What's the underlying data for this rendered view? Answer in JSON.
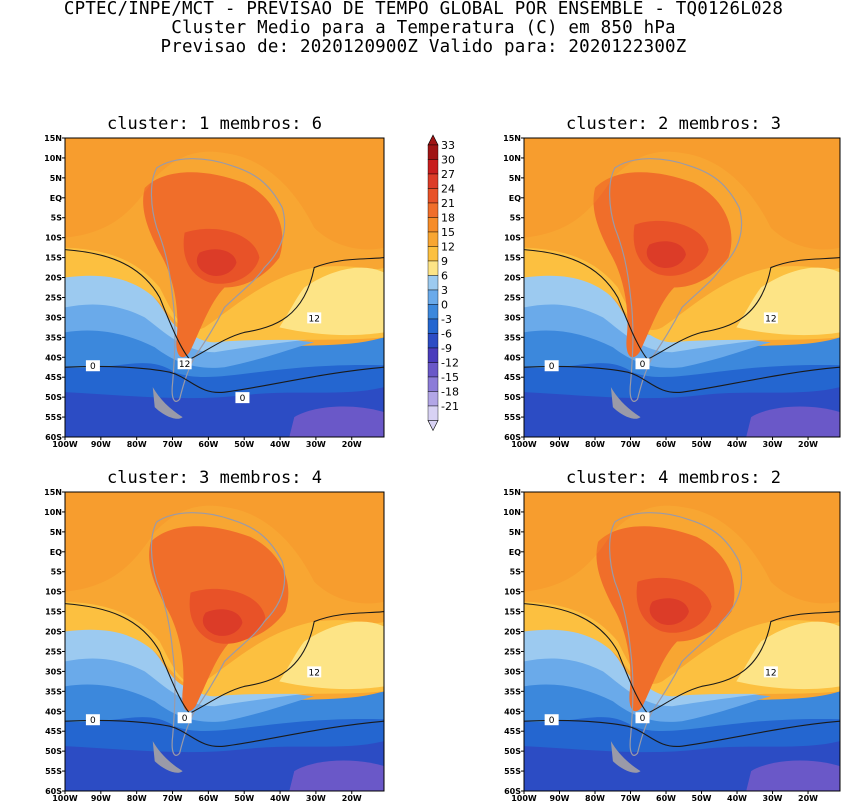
{
  "header": {
    "line1": "CPTEC/INPE/MCT - PREVISAO DE TEMPO GLOBAL POR ENSEMBLE - TQ0126L028",
    "line2": "Cluster Medio para a Temperatura (C) em 850 hPa",
    "line3": "Previsao de: 2020120900Z   Valido para: 2020122300Z"
  },
  "panels": [
    {
      "title": "cluster: 1   membros: 6",
      "contour_labels": [
        "12",
        "12",
        "0",
        "0"
      ]
    },
    {
      "title": "cluster: 2   membros: 3",
      "contour_labels": [
        "12",
        "0",
        "0"
      ]
    },
    {
      "title": "cluster: 3   membros: 4",
      "contour_labels": [
        "12",
        "0",
        "0"
      ]
    },
    {
      "title": "cluster: 4   membros: 2",
      "contour_labels": [
        "12",
        "0",
        "0"
      ]
    }
  ],
  "lat_labels": [
    "15N",
    "10N",
    "5N",
    "EQ",
    "5S",
    "10S",
    "15S",
    "20S",
    "25S",
    "30S",
    "35S",
    "40S",
    "45S",
    "50S",
    "55S",
    "60S"
  ],
  "lon_labels": [
    "100W",
    "90W",
    "80W",
    "70W",
    "60W",
    "50W",
    "40W",
    "30W",
    "20W"
  ],
  "colorbar": {
    "labels": [
      "33",
      "30",
      "27",
      "24",
      "21",
      "18",
      "15",
      "12",
      "9",
      "6",
      "3",
      "0",
      "-3",
      "-6",
      "-9",
      "-12",
      "-15",
      "-18",
      "-21"
    ],
    "colors": [
      "#a01414",
      "#c81e1e",
      "#dc3c28",
      "#e85228",
      "#f06e2a",
      "#f68c28",
      "#f8a632",
      "#fcc040",
      "#fde486",
      "#9ccaf0",
      "#6aaaea",
      "#3c88dc",
      "#2466d0",
      "#2c4cc4",
      "#4a3cbc",
      "#6a58c8",
      "#8c7cd8",
      "#b2a6e6",
      "#d8d2f4"
    ]
  }
}
